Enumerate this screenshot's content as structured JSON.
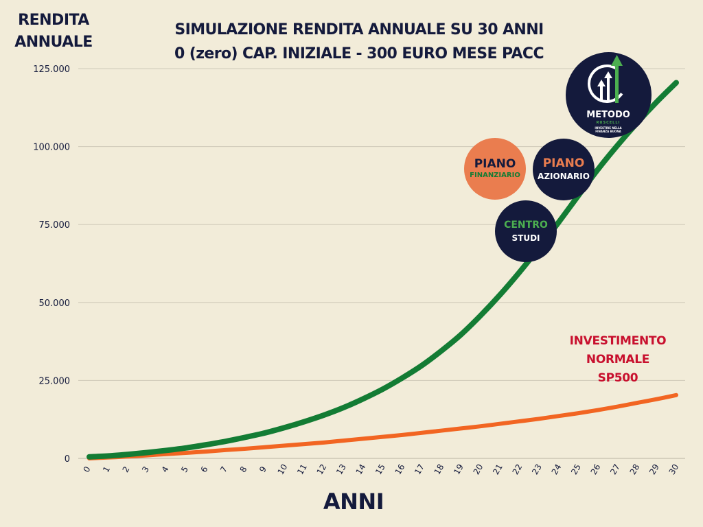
{
  "y_axis_label": {
    "line1": "RENDITA",
    "line2": "ANNUALE"
  },
  "title": {
    "line1": "SIMULAZIONE RENDITA ANNUALE SU 30 ANNI",
    "line2": "0 (zero) CAP. INIZIALE - 300 EURO MESE PACC"
  },
  "x_axis_label": "ANNI",
  "annotation": {
    "line1": "INVESTIMENTO",
    "line2": "NORMALE",
    "line3": "SP500"
  },
  "badges": {
    "piano_finanziario": {
      "line1": "PIANO",
      "line2": "FINANZIARIO"
    },
    "piano_azionario": {
      "line1": "PIANO",
      "line2": "AZIONARIO"
    },
    "centro_studi": {
      "line1": "CENTRO",
      "line2": "STUDI"
    }
  },
  "logo": {
    "name": "METODO",
    "sub": "RUSCELLI",
    "tagline_line1": "INVESTIRE NELLA",
    "tagline_line2": "FINANZA BUONA"
  },
  "colors": {
    "background": "#f2ecd9",
    "navy": "#141a3c",
    "green_series": "#137c34",
    "orange_series": "#f26522",
    "annotation": "#c8102e",
    "badge_orange": "#ea7d4f",
    "logo_green": "#4caf50"
  },
  "chart_data": {
    "type": "line",
    "x": [
      0,
      1,
      2,
      3,
      4,
      5,
      6,
      7,
      8,
      9,
      10,
      11,
      12,
      13,
      14,
      15,
      16,
      17,
      18,
      19,
      20,
      21,
      22,
      23,
      24,
      25,
      26,
      27,
      28,
      29,
      30
    ],
    "ylim": [
      0,
      125000
    ],
    "y_ticks": [
      "0",
      "25.000",
      "50.000",
      "75.000",
      "100.000",
      "125.000"
    ],
    "y_tick_values": [
      0,
      25000,
      50000,
      75000,
      100000,
      125000
    ],
    "grid": true,
    "series": [
      {
        "color": "#137c34",
        "values": [
          500,
          800,
          1300,
          1900,
          2600,
          3400,
          4400,
          5500,
          6800,
          8200,
          9900,
          11800,
          13900,
          16300,
          19100,
          22200,
          25800,
          29800,
          34500,
          39700,
          45800,
          52500,
          59800,
          67600,
          75800,
          84300,
          92700,
          100400,
          107600,
          114300,
          120500
        ]
      },
      {
        "name": "INVESTIMENTO NORMALE SP500",
        "color": "#f26522",
        "values": [
          0,
          300,
          600,
          1000,
          1400,
          1800,
          2200,
          2700,
          3100,
          3600,
          4100,
          4600,
          5100,
          5700,
          6300,
          6900,
          7500,
          8200,
          8900,
          9600,
          10300,
          11100,
          11900,
          12700,
          13600,
          14500,
          15500,
          16600,
          17800,
          19000,
          20300
        ]
      }
    ]
  }
}
